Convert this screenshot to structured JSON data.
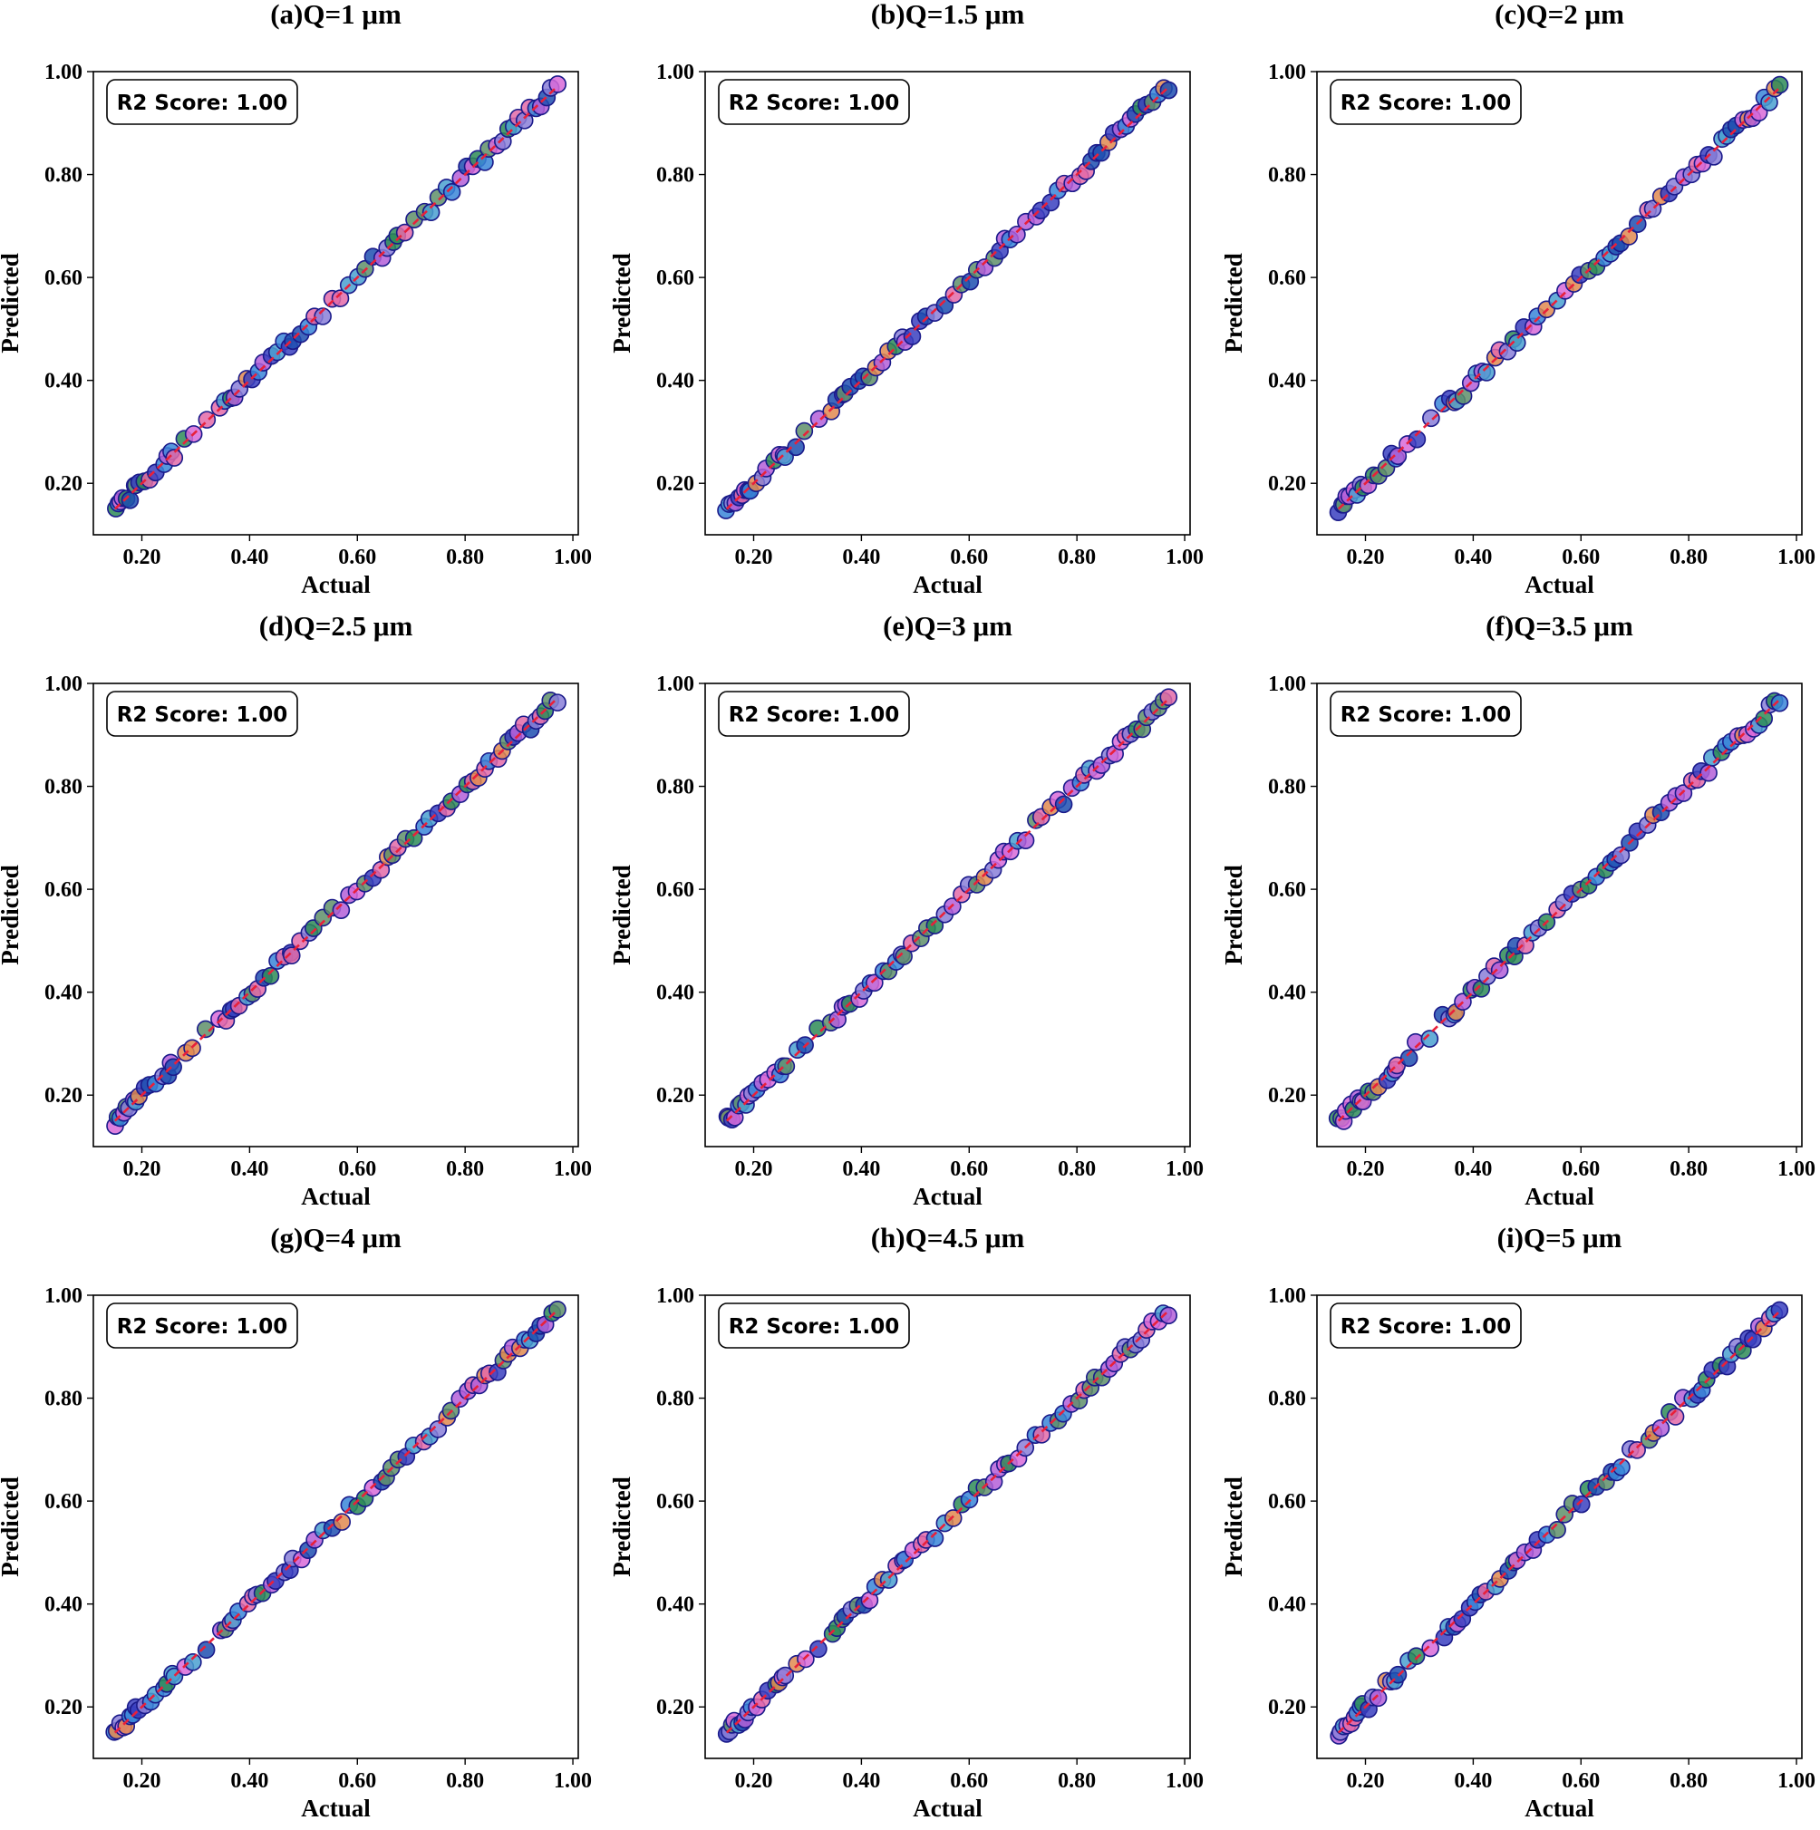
{
  "chart_data": [
    {
      "type": "scatter",
      "title": "(a)Q=1  μm",
      "xlabel": "Actual",
      "ylabel": "Predicted",
      "annotation": "R2 Score: 1.00",
      "xlim": [
        0.11,
        1.01
      ],
      "ylim": [
        0.1,
        1.0
      ],
      "xticks": [
        "0.20",
        "0.40",
        "0.60",
        "0.80",
        "1.00"
      ],
      "yticks": [
        "0.20",
        "0.40",
        "0.60",
        "0.80",
        "1.00"
      ],
      "reference_line": "y = x (dashed red)",
      "seed": 1
    },
    {
      "type": "scatter",
      "title": "(b)Q=1.5  μm",
      "xlabel": "Actual",
      "ylabel": "Predicted",
      "annotation": "R2 Score: 1.00",
      "xlim": [
        0.11,
        1.01
      ],
      "ylim": [
        0.1,
        1.0
      ],
      "xticks": [
        "0.20",
        "0.40",
        "0.60",
        "0.80",
        "1.00"
      ],
      "yticks": [
        "0.20",
        "0.40",
        "0.60",
        "0.80",
        "1.00"
      ],
      "reference_line": "y = x (dashed red)",
      "seed": 2
    },
    {
      "type": "scatter",
      "title": "(c)Q=2  μm",
      "xlabel": "Actual",
      "ylabel": "Predicted",
      "annotation": "R2 Score: 1.00",
      "xlim": [
        0.11,
        1.01
      ],
      "ylim": [
        0.1,
        1.0
      ],
      "xticks": [
        "0.20",
        "0.40",
        "0.60",
        "0.80",
        "1.00"
      ],
      "yticks": [
        "0.20",
        "0.40",
        "0.60",
        "0.80",
        "1.00"
      ],
      "reference_line": "y = x (dashed red)",
      "seed": 3
    },
    {
      "type": "scatter",
      "title": "(d)Q=2.5  μm",
      "xlabel": "Actual",
      "ylabel": "Predicted",
      "annotation": "R2 Score: 1.00",
      "xlim": [
        0.11,
        1.01
      ],
      "ylim": [
        0.1,
        1.0
      ],
      "xticks": [
        "0.20",
        "0.40",
        "0.60",
        "0.80",
        "1.00"
      ],
      "yticks": [
        "0.20",
        "0.40",
        "0.60",
        "0.80",
        "1.00"
      ],
      "reference_line": "y = x (dashed red)",
      "seed": 4
    },
    {
      "type": "scatter",
      "title": "(e)Q=3  μm",
      "xlabel": "Actual",
      "ylabel": "Predicted",
      "annotation": "R2 Score: 1.00",
      "xlim": [
        0.11,
        1.01
      ],
      "ylim": [
        0.1,
        1.0
      ],
      "xticks": [
        "0.20",
        "0.40",
        "0.60",
        "0.80",
        "1.00"
      ],
      "yticks": [
        "0.20",
        "0.40",
        "0.60",
        "0.80",
        "1.00"
      ],
      "reference_line": "y = x (dashed red)",
      "seed": 5
    },
    {
      "type": "scatter",
      "title": "(f)Q=3.5  μm",
      "xlabel": "Actual",
      "ylabel": "Predicted",
      "annotation": "R2 Score: 1.00",
      "xlim": [
        0.11,
        1.01
      ],
      "ylim": [
        0.1,
        1.0
      ],
      "xticks": [
        "0.20",
        "0.40",
        "0.60",
        "0.80",
        "1.00"
      ],
      "yticks": [
        "0.20",
        "0.40",
        "0.60",
        "0.80",
        "1.00"
      ],
      "reference_line": "y = x (dashed red)",
      "seed": 6
    },
    {
      "type": "scatter",
      "title": "(g)Q=4  μm",
      "xlabel": "Actual",
      "ylabel": "Predicted",
      "annotation": "R2 Score: 1.00",
      "xlim": [
        0.11,
        1.01
      ],
      "ylim": [
        0.1,
        1.0
      ],
      "xticks": [
        "0.20",
        "0.40",
        "0.60",
        "0.80",
        "1.00"
      ],
      "yticks": [
        "0.20",
        "0.40",
        "0.60",
        "0.80",
        "1.00"
      ],
      "reference_line": "y = x (dashed red)",
      "seed": 7
    },
    {
      "type": "scatter",
      "title": "(h)Q=4.5  μm",
      "xlabel": "Actual",
      "ylabel": "Predicted",
      "annotation": "R2 Score: 1.00",
      "xlim": [
        0.11,
        1.01
      ],
      "ylim": [
        0.1,
        1.0
      ],
      "xticks": [
        "0.20",
        "0.40",
        "0.60",
        "0.80",
        "1.00"
      ],
      "yticks": [
        "0.20",
        "0.40",
        "0.60",
        "0.80",
        "1.00"
      ],
      "reference_line": "y = x (dashed red)",
      "seed": 8
    },
    {
      "type": "scatter",
      "title": "(i)Q=5  μm",
      "xlabel": "Actual",
      "ylabel": "Predicted",
      "annotation": "R2 Score: 1.00",
      "xlim": [
        0.11,
        1.01
      ],
      "ylim": [
        0.1,
        1.0
      ],
      "xticks": [
        "0.20",
        "0.40",
        "0.60",
        "0.80",
        "1.00"
      ],
      "yticks": [
        "0.20",
        "0.40",
        "0.60",
        "0.80",
        "1.00"
      ],
      "reference_line": "y = x (dashed red)",
      "seed": 9
    }
  ],
  "actual_values": [
    0.15,
    0.155,
    0.16,
    0.165,
    0.172,
    0.178,
    0.185,
    0.19,
    0.195,
    0.205,
    0.215,
    0.225,
    0.24,
    0.248,
    0.255,
    0.26,
    0.28,
    0.295,
    0.32,
    0.345,
    0.355,
    0.365,
    0.37,
    0.38,
    0.395,
    0.405,
    0.415,
    0.425,
    0.44,
    0.45,
    0.465,
    0.475,
    0.48,
    0.495,
    0.51,
    0.52,
    0.535,
    0.555,
    0.57,
    0.585,
    0.6,
    0.615,
    0.63,
    0.645,
    0.655,
    0.665,
    0.675,
    0.69,
    0.705,
    0.725,
    0.735,
    0.75,
    0.765,
    0.775,
    0.79,
    0.805,
    0.815,
    0.825,
    0.835,
    0.845,
    0.86,
    0.87,
    0.88,
    0.89,
    0.9,
    0.91,
    0.92,
    0.93,
    0.94,
    0.95,
    0.96,
    0.97
  ],
  "point_palette": [
    "#1f4fb0",
    "#3a86d8",
    "#4aa0d0",
    "#2e8b57",
    "#5f8f6a",
    "#e08a50",
    "#8a7fd8",
    "#b45fd8",
    "#d86ad8",
    "#e36aa8",
    "#3a3fc0"
  ],
  "edge_color": "#1a1a8a",
  "line_color": "#e8203a",
  "colors": {
    "axes": "#000000",
    "box_edge": "#000000",
    "box_fill": "#ffffff"
  }
}
